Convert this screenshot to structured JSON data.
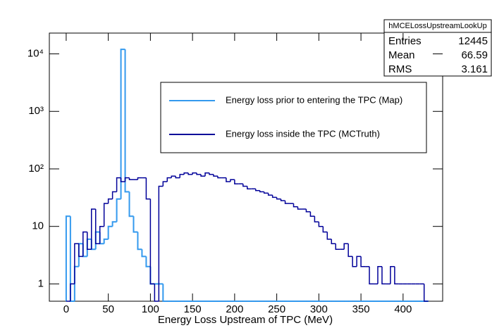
{
  "chart_data": {
    "type": "histogram",
    "x_label": "Energy Loss Upstream of TPC (MeV)",
    "log_y": true,
    "xlim": [
      -20,
      447
    ],
    "ylim": [
      0.5,
      23000
    ],
    "xticks": [
      0,
      50,
      100,
      150,
      200,
      250,
      300,
      350,
      400
    ],
    "yticks": [
      1,
      10,
      {
        "value": 100,
        "label": "10²"
      },
      {
        "value": 1000,
        "label": "10³"
      },
      {
        "value": 10000,
        "label": "10⁴"
      }
    ],
    "bins": [
      0,
      5,
      10,
      15,
      20,
      25,
      30,
      35,
      40,
      45,
      50,
      55,
      60,
      65,
      70,
      75,
      80,
      85,
      90,
      95,
      100,
      105,
      110,
      115,
      120,
      125,
      130,
      135,
      140,
      145,
      150,
      155,
      160,
      165,
      170,
      175,
      180,
      185,
      190,
      195,
      200,
      205,
      210,
      215,
      220,
      225,
      230,
      235,
      240,
      245,
      250,
      255,
      260,
      265,
      270,
      275,
      280,
      285,
      290,
      295,
      300,
      305,
      310,
      315,
      320,
      325,
      330,
      335,
      340,
      345,
      350,
      355,
      360,
      365,
      370,
      375,
      380,
      385,
      390,
      395,
      400,
      405,
      410,
      415,
      420,
      425,
      430
    ],
    "series": [
      {
        "name": "Energy loss prior to entering the TPC (Map)",
        "color": "#3399ee",
        "values": [
          15,
          0,
          2,
          5,
          3,
          6,
          4,
          8,
          5,
          6,
          10,
          12,
          30,
          12000,
          40,
          15,
          8,
          4,
          3,
          2,
          1,
          1,
          1,
          0,
          0,
          0,
          0,
          0,
          0,
          0,
          0,
          0,
          0,
          0,
          0,
          0,
          0,
          0,
          0,
          0,
          0,
          0,
          0,
          0,
          0,
          0,
          0,
          0,
          0,
          0,
          0,
          0,
          0,
          0,
          0,
          0,
          0,
          0,
          0,
          0,
          0,
          0,
          0,
          0,
          0,
          0,
          0,
          0,
          0,
          0,
          0,
          0,
          0,
          0,
          0,
          0,
          0,
          0,
          0,
          0,
          0,
          0,
          0,
          0,
          0,
          0
        ]
      },
      {
        "name": "Energy loss inside the TPC (MCTruth)",
        "color": "#000099",
        "values": [
          0,
          1,
          5,
          3,
          8,
          4,
          20,
          5,
          10,
          25,
          30,
          40,
          70,
          60,
          70,
          65,
          65,
          70,
          70,
          30,
          1,
          0,
          50,
          60,
          70,
          75,
          70,
          80,
          85,
          80,
          85,
          80,
          75,
          85,
          80,
          75,
          70,
          70,
          60,
          65,
          55,
          55,
          50,
          45,
          45,
          42,
          40,
          38,
          35,
          32,
          30,
          28,
          25,
          25,
          22,
          20,
          20,
          18,
          15,
          12,
          10,
          8,
          6,
          5,
          4,
          4,
          5,
          3,
          2,
          3,
          2,
          2,
          1,
          1,
          2,
          1,
          1,
          2,
          1,
          1,
          1,
          1,
          1,
          1,
          1,
          0
        ]
      }
    ],
    "stats": {
      "name": "hMCELossUpstreamLookUp",
      "rows": [
        [
          "Entries",
          12445
        ],
        [
          "Mean",
          66.59
        ],
        [
          "RMS",
          3.161
        ]
      ]
    }
  }
}
